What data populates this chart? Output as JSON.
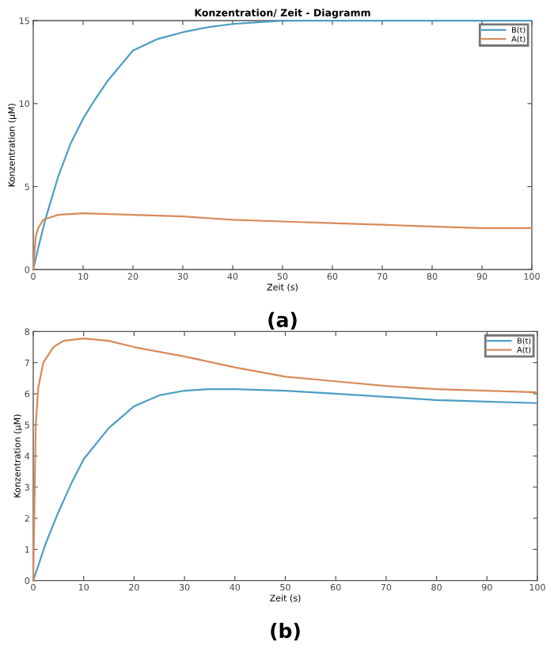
{
  "chart_data": [
    {
      "type": "line",
      "title": "Konzentration/ Zeit - Diagramm",
      "xlabel": "Zeit (s)",
      "ylabel": "Konzentration (µM)",
      "annotations": [
        "(a)"
      ],
      "xlim": [
        0,
        100
      ],
      "ylim": [
        0,
        15
      ],
      "xticks": [
        0,
        10,
        20,
        30,
        40,
        50,
        60,
        70,
        80,
        90,
        100
      ],
      "yticks": [
        0,
        5,
        10,
        15
      ],
      "grid": false,
      "legend": "top right",
      "marker": "none",
      "line_style": "solid",
      "series": [
        {
          "name": "B(t)",
          "color": "#4c9ec4",
          "x": [
            0,
            1,
            2.5,
            5,
            7.5,
            10,
            12.5,
            15,
            20,
            25,
            30,
            35,
            40,
            45,
            50,
            60,
            70,
            80,
            90,
            100
          ],
          "values": [
            0,
            1.3,
            3.1,
            5.6,
            7.6,
            9.1,
            10.3,
            11.4,
            13.2,
            13.9,
            14.3,
            14.6,
            14.8,
            14.9,
            15,
            15,
            15,
            15,
            15,
            15
          ]
        },
        {
          "name": "A(t)",
          "color": "#d98a5a",
          "x": [
            0,
            0.5,
            1,
            2,
            3,
            5,
            10,
            20,
            30,
            40,
            50,
            60,
            70,
            80,
            90,
            100
          ],
          "values": [
            0,
            2.0,
            2.5,
            3.0,
            3.1,
            3.3,
            3.4,
            3.3,
            3.2,
            3.0,
            2.9,
            2.8,
            2.7,
            2.6,
            2.5,
            2.5
          ]
        }
      ]
    },
    {
      "type": "line",
      "xlabel": "Zeit (s)",
      "ylabel": "Konzentration (µM)",
      "annotations": [
        "(b)"
      ],
      "xlim": [
        0,
        100
      ],
      "ylim": [
        0,
        8
      ],
      "xticks": [
        0,
        10,
        20,
        30,
        40,
        50,
        60,
        70,
        80,
        90,
        100
      ],
      "yticks": [
        0,
        1,
        2,
        3,
        4,
        5,
        6,
        7,
        8
      ],
      "grid": false,
      "legend": "top right",
      "marker": "none",
      "line_style": "solid",
      "series": [
        {
          "name": "B(t)",
          "color": "#4c9ec4",
          "x": [
            0,
            2.5,
            5,
            7.5,
            10,
            15,
            20,
            25,
            30,
            35,
            40,
            50,
            60,
            70,
            80,
            90,
            100
          ],
          "values": [
            0,
            1.2,
            2.2,
            3.1,
            3.9,
            4.9,
            5.6,
            5.95,
            6.1,
            6.15,
            6.15,
            6.1,
            6.0,
            5.9,
            5.8,
            5.75,
            5.7
          ]
        },
        {
          "name": "A(t)",
          "color": "#d98a5a",
          "x": [
            0,
            0.5,
            1,
            2,
            4,
            6,
            10,
            15,
            20,
            30,
            40,
            50,
            60,
            70,
            80,
            90,
            100
          ],
          "values": [
            0,
            5.0,
            6.2,
            7.0,
            7.5,
            7.7,
            7.78,
            7.7,
            7.5,
            7.2,
            6.85,
            6.55,
            6.4,
            6.25,
            6.15,
            6.1,
            6.05
          ]
        }
      ]
    }
  ]
}
